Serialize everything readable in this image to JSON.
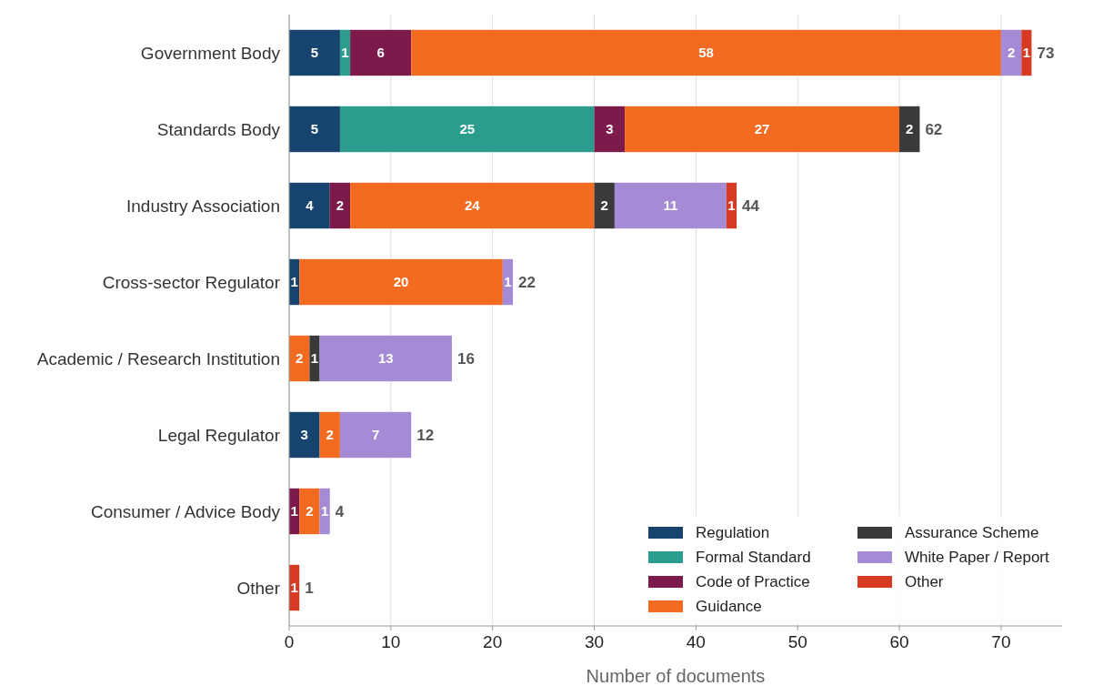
{
  "chart_data": {
    "type": "bar",
    "orientation": "horizontal",
    "stacked": true,
    "xlabel": "Number of documents",
    "categories": [
      "Government Body",
      "Standards Body",
      "Industry Association",
      "Cross-sector Regulator",
      "Academic / Research Institution",
      "Legal Regulator",
      "Consumer / Advice Body",
      "Other"
    ],
    "series": [
      {
        "name": "Regulation",
        "color": "#17446e",
        "values": [
          5,
          5,
          4,
          1,
          null,
          3,
          null,
          null
        ]
      },
      {
        "name": "Formal Standard",
        "color": "#2a9d8f",
        "values": [
          1,
          25,
          null,
          null,
          null,
          null,
          null,
          null
        ]
      },
      {
        "name": "Code of Practice",
        "color": "#7b1a4b",
        "values": [
          6,
          3,
          2,
          null,
          null,
          null,
          1,
          null
        ]
      },
      {
        "name": "Guidance",
        "color": "#f26b21",
        "values": [
          58,
          27,
          24,
          20,
          2,
          2,
          2,
          null
        ]
      },
      {
        "name": "Assurance Scheme",
        "color": "#3a3a3a",
        "values": [
          null,
          2,
          2,
          null,
          1,
          null,
          null,
          null
        ]
      },
      {
        "name": "White Paper / Report",
        "color": "#a58bd6",
        "values": [
          2,
          null,
          11,
          1,
          13,
          7,
          1,
          null
        ]
      },
      {
        "name": "Other",
        "color": "#d63a22",
        "values": [
          1,
          null,
          1,
          null,
          null,
          null,
          null,
          1
        ]
      }
    ],
    "totals": [
      "73",
      "62",
      "44",
      "22",
      "16",
      "12",
      "4",
      "1"
    ],
    "data_labels": true,
    "xlim": [
      0,
      76
    ],
    "xticks": [
      0,
      10,
      20,
      30,
      40,
      50,
      60,
      70
    ],
    "grid": "x",
    "legend": "bottom right"
  }
}
